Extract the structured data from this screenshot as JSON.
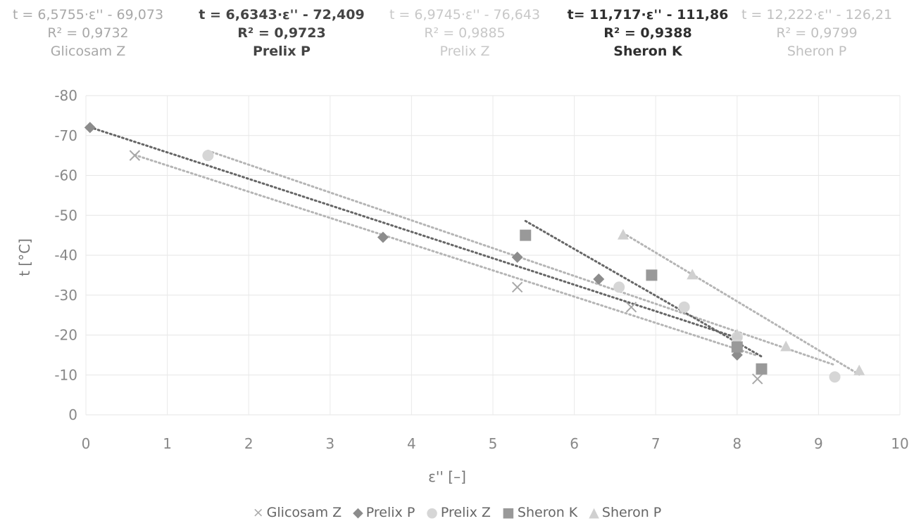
{
  "annotations": [
    {
      "equation": "t = 6,5755·ε'' - 69,073",
      "r2": "R² = 0,9732",
      "series": "Glicosam Z",
      "color": "#a8a8a8",
      "weight": "normal"
    },
    {
      "equation": "t = 6,6343·ε''  - 72,409",
      "r2": "R² = 0,9723",
      "series": "Prelix P",
      "color": "#444444",
      "weight": "bold"
    },
    {
      "equation": "t = 6,9745·ε''  - 76,643",
      "r2": "R² = 0,9885",
      "series": "Prelix Z",
      "color": "#c8c8c8",
      "weight": "normal"
    },
    {
      "equation": "t= 11,717·ε'' - 111,86",
      "r2": "R² = 0,9388",
      "series": "Sheron K",
      "color": "#2f2f2f",
      "weight": "bold"
    },
    {
      "equation": "t = 12,222·ε''  - 126,21",
      "r2": "R² = 0,9799",
      "series": "Sheron P",
      "color": "#c0c0c0",
      "weight": "normal"
    }
  ],
  "legend": [
    {
      "symbol": "×",
      "label": "Glicosam Z",
      "color": "#aaaaaa"
    },
    {
      "symbol": "◆",
      "label": "Prelix P",
      "color": "#8c8c8c"
    },
    {
      "symbol": "●",
      "label": "Prelix Z",
      "color": "#d6d6d6"
    },
    {
      "symbol": "■",
      "label": "Sheron K",
      "color": "#999999"
    },
    {
      "symbol": "▲",
      "label": "Sheron P",
      "color": "#d0d0d0"
    }
  ],
  "chart_data": {
    "type": "scatter",
    "xlabel": "ε'' [–]",
    "ylabel": "t [°C]",
    "xlim": [
      0,
      10
    ],
    "ylim": [
      0,
      -80
    ],
    "x_ticks": [
      0,
      1,
      2,
      3,
      4,
      5,
      6,
      7,
      8,
      9,
      10
    ],
    "y_ticks": [
      0,
      -10,
      -20,
      -30,
      -40,
      -50,
      -60,
      -70,
      -80
    ],
    "grid": true,
    "legend_position": "bottom",
    "series": [
      {
        "name": "Glicosam Z",
        "marker": "x",
        "color": "#a8a8a8",
        "points": [
          [
            0.6,
            -65
          ],
          [
            5.3,
            -32
          ],
          [
            6.7,
            -27
          ],
          [
            8.25,
            -9
          ]
        ],
        "trend": {
          "slope": 6.5755,
          "intercept": -69.073,
          "x_range": [
            0.6,
            8.25
          ]
        }
      },
      {
        "name": "Prelix P",
        "marker": "diamond",
        "color": "#8c8c8c",
        "points": [
          [
            0.05,
            -72
          ],
          [
            3.65,
            -44.5
          ],
          [
            5.3,
            -39.5
          ],
          [
            6.3,
            -34
          ],
          [
            8.0,
            -15
          ]
        ],
        "trend": {
          "slope": 6.6343,
          "intercept": -72.409,
          "x_range": [
            0.05,
            8.0
          ]
        }
      },
      {
        "name": "Prelix Z",
        "marker": "circle",
        "color": "#d6d6d6",
        "points": [
          [
            1.5,
            -65
          ],
          [
            6.55,
            -32
          ],
          [
            7.35,
            -27
          ],
          [
            8.0,
            -19.5
          ],
          [
            9.2,
            -9.5
          ]
        ],
        "trend": {
          "slope": 6.9745,
          "intercept": -76.643,
          "x_range": [
            1.5,
            9.2
          ]
        }
      },
      {
        "name": "Sheron K",
        "marker": "square",
        "color": "#999999",
        "points": [
          [
            5.4,
            -45
          ],
          [
            6.95,
            -35
          ],
          [
            8.0,
            -17
          ],
          [
            8.3,
            -11.5
          ]
        ],
        "trend": {
          "slope": 11.717,
          "intercept": -111.86,
          "x_range": [
            5.4,
            8.3
          ]
        }
      },
      {
        "name": "Sheron P",
        "marker": "triangle",
        "color": "#d0d0d0",
        "points": [
          [
            6.6,
            -45
          ],
          [
            7.45,
            -35
          ],
          [
            8.0,
            -20
          ],
          [
            8.6,
            -17
          ],
          [
            9.5,
            -11
          ]
        ],
        "trend": {
          "slope": 12.222,
          "intercept": -126.21,
          "x_range": [
            6.6,
            9.5
          ]
        }
      }
    ]
  }
}
